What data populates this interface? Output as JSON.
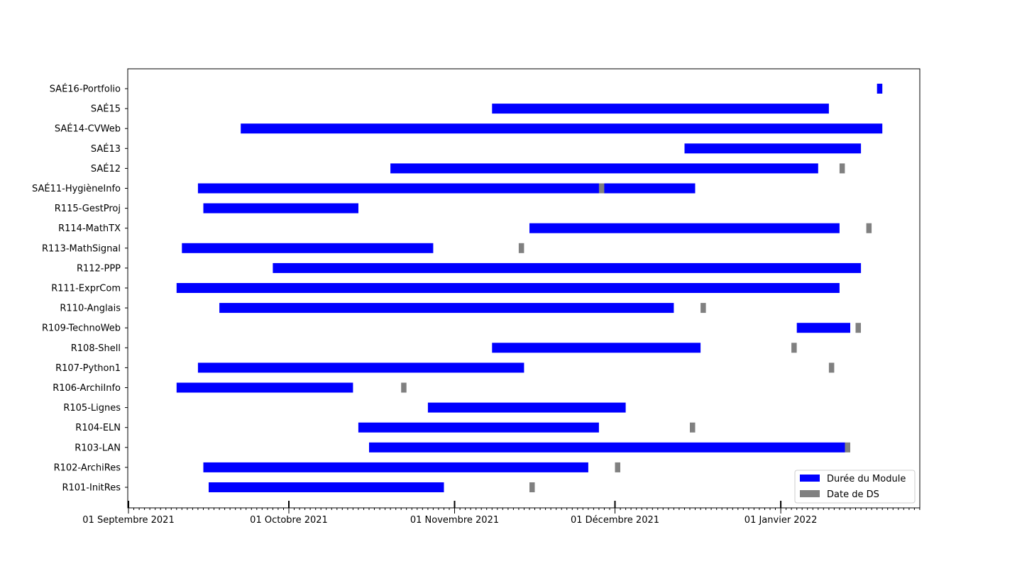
{
  "chart_data": {
    "type": "gantt",
    "title": "",
    "xlabel": "",
    "ylabel": "",
    "x_range": [
      "2021-09-01",
      "2022-01-16"
    ],
    "x_ticks": [
      {
        "date": "2021-09-01",
        "label": "01 Septembre 2021"
      },
      {
        "date": "2021-10-01",
        "label": "01 Octobre 2021"
      },
      {
        "date": "2021-11-01",
        "label": "01 Novembre 2021"
      },
      {
        "date": "2021-12-01",
        "label": "01 Décembre 2021"
      },
      {
        "date": "2022-01-01",
        "label": "01 Janvier 2022"
      }
    ],
    "minor_ticks": "daily",
    "legend": {
      "position": "bottom-right",
      "entries": [
        {
          "label": "Durée du Module",
          "color": "#0000ff"
        },
        {
          "label": "Date de DS",
          "color": "#808080"
        }
      ]
    },
    "rows": [
      {
        "name": "R101-InitRes",
        "start": "2021-09-16",
        "end": "2021-10-30",
        "ds": [
          "2021-11-15"
        ]
      },
      {
        "name": "R102-ArchiRes",
        "start": "2021-09-15",
        "end": "2021-11-26",
        "ds": [
          "2021-12-01"
        ]
      },
      {
        "name": "R103-LAN",
        "start": "2021-10-16",
        "end": "2022-01-13",
        "ds": [
          "2022-01-13"
        ]
      },
      {
        "name": "R104-ELN",
        "start": "2021-10-14",
        "end": "2021-11-28",
        "ds": [
          "2021-12-15"
        ]
      },
      {
        "name": "R105-Lignes",
        "start": "2021-10-27",
        "end": "2021-12-03",
        "ds": []
      },
      {
        "name": "R106-ArchiInfo",
        "start": "2021-09-10",
        "end": "2021-10-13",
        "ds": [
          "2021-10-22"
        ]
      },
      {
        "name": "R107-Python1",
        "start": "2021-09-14",
        "end": "2021-11-14",
        "ds": [
          "2022-01-10"
        ]
      },
      {
        "name": "R108-Shell",
        "start": "2021-11-08",
        "end": "2021-12-17",
        "ds": [
          "2022-01-03"
        ]
      },
      {
        "name": "R109-TechnoWeb",
        "start": "2022-01-04",
        "end": "2022-01-14",
        "ds": [
          "2022-01-15"
        ]
      },
      {
        "name": "R110-Anglais",
        "start": "2021-09-18",
        "end": "2021-12-12",
        "ds": [
          "2021-12-17"
        ]
      },
      {
        "name": "R111-ExprCom",
        "start": "2021-09-10",
        "end": "2022-01-12",
        "ds": []
      },
      {
        "name": "R112-PPP",
        "start": "2021-09-28",
        "end": "2022-01-16",
        "ds": []
      },
      {
        "name": "R113-MathSignal",
        "start": "2021-09-11",
        "end": "2021-10-28",
        "ds": [
          "2021-11-13"
        ]
      },
      {
        "name": "R114-MathTX",
        "start": "2021-11-15",
        "end": "2022-01-12",
        "ds": [
          "2022-01-17"
        ]
      },
      {
        "name": "R115-GestProj",
        "start": "2021-09-15",
        "end": "2021-10-14",
        "ds": []
      },
      {
        "name": "SAÉ11-HygièneInfo",
        "start": "2021-09-14",
        "end": "2021-12-16",
        "ds": [
          "2021-11-28"
        ]
      },
      {
        "name": "SAÉ12",
        "start": "2021-10-20",
        "end": "2022-01-08",
        "ds": [
          "2022-01-12"
        ]
      },
      {
        "name": "SAÉ13",
        "start": "2021-12-14",
        "end": "2022-01-16",
        "ds": []
      },
      {
        "name": "SAÉ14-CVWeb",
        "start": "2021-09-22",
        "end": "2022-01-20",
        "ds": []
      },
      {
        "name": "SAÉ15",
        "start": "2021-11-08",
        "end": "2022-01-10",
        "ds": []
      },
      {
        "name": "SAÉ16-Portfolio",
        "start": "2022-01-19",
        "end": "2022-01-20",
        "ds": []
      }
    ]
  }
}
